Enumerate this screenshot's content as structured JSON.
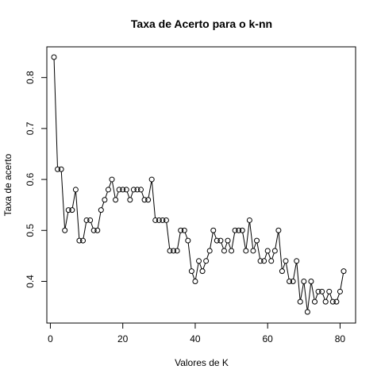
{
  "chart_data": {
    "type": "line",
    "title": "Taxa de Acerto para o k-nn",
    "xlabel": "Valores de K",
    "ylabel": "Taxa de acerto",
    "xlim": [
      1,
      81
    ],
    "ylim": [
      0.34,
      0.84
    ],
    "xticks": [
      0,
      20,
      40,
      60,
      80
    ],
    "yticks": [
      0.4,
      0.5,
      0.6,
      0.7,
      0.8
    ],
    "xtick_labels": [
      "0",
      "20",
      "40",
      "60",
      "80"
    ],
    "ytick_labels": [
      "0.4",
      "0.5",
      "0.6",
      "0.7",
      "0.8"
    ],
    "grid": false,
    "marker": "open-circle",
    "x": [
      1,
      2,
      3,
      4,
      5,
      6,
      7,
      8,
      9,
      10,
      11,
      12,
      13,
      14,
      15,
      16,
      17,
      18,
      19,
      20,
      21,
      22,
      23,
      24,
      25,
      26,
      27,
      28,
      29,
      30,
      31,
      32,
      33,
      34,
      35,
      36,
      37,
      38,
      39,
      40,
      41,
      42,
      43,
      44,
      45,
      46,
      47,
      48,
      49,
      50,
      51,
      52,
      53,
      54,
      55,
      56,
      57,
      58,
      59,
      60,
      61,
      62,
      63,
      64,
      65,
      66,
      67,
      68,
      69,
      70,
      71,
      72,
      73,
      74,
      75,
      76,
      77,
      78,
      79,
      80,
      81
    ],
    "y": [
      0.84,
      0.62,
      0.62,
      0.5,
      0.54,
      0.54,
      0.58,
      0.48,
      0.48,
      0.52,
      0.52,
      0.5,
      0.5,
      0.54,
      0.56,
      0.58,
      0.6,
      0.56,
      0.58,
      0.58,
      0.58,
      0.56,
      0.58,
      0.58,
      0.58,
      0.56,
      0.56,
      0.6,
      0.52,
      0.52,
      0.52,
      0.52,
      0.46,
      0.46,
      0.46,
      0.5,
      0.5,
      0.48,
      0.42,
      0.4,
      0.44,
      0.42,
      0.44,
      0.46,
      0.5,
      0.48,
      0.48,
      0.46,
      0.48,
      0.46,
      0.5,
      0.5,
      0.5,
      0.46,
      0.52,
      0.46,
      0.48,
      0.44,
      0.44,
      0.46,
      0.44,
      0.46,
      0.5,
      0.42,
      0.44,
      0.4,
      0.4,
      0.44,
      0.36,
      0.4,
      0.34,
      0.4,
      0.36,
      0.38,
      0.38,
      0.36,
      0.38,
      0.36,
      0.36,
      0.38,
      0.42
    ]
  }
}
